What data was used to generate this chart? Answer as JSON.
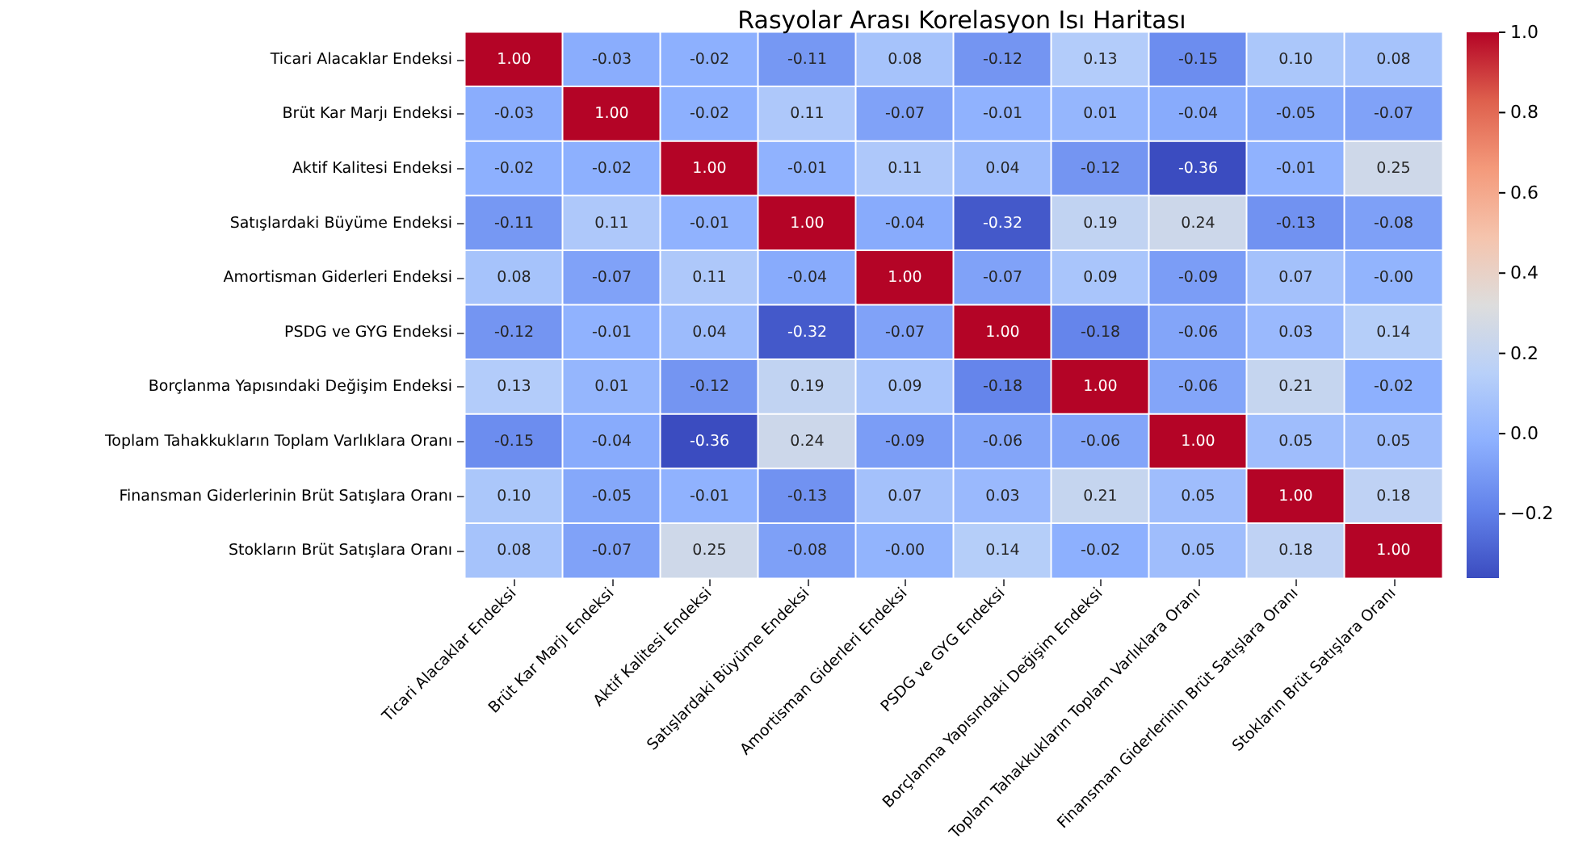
{
  "chart_data": {
    "type": "heatmap",
    "title": "Rasyolar Arası Korelasyon Isı Haritası",
    "categories": [
      "Ticari Alacaklar Endeksi",
      "Brüt Kar Marjı Endeksi",
      "Aktif Kalitesi Endeksi",
      "Satışlardaki Büyüme Endeksi",
      "Amortisman Giderleri Endeksi",
      "PSDG ve GYG Endeksi",
      "Borçlanma Yapısındaki Değişim Endeksi",
      "Toplam Tahakkukların Toplam Varlıklara Oranı",
      "Finansman Giderlerinin Brüt Satışlara Oranı",
      "Stokların Brüt Satışlara Oranı"
    ],
    "y_categories": [
      "Ticari Alacaklar Endeksi",
      "Brüt Kar Marjı Endeksi",
      "Aktif Kalitesi Endeksi",
      "Satışlardaki Büyüme Endeksi",
      "Amortisman Giderleri Endeksi",
      "PSDG ve GYG Endeksi",
      "Borçlanma Yapısındaki Değişim Endeksi",
      "Toplam Tahakkukların Toplam Varlıklara Oranı",
      "Finansman Giderlerinin Brüt Satışlara Oranı",
      "Stokların Brüt Satışlara Oranı"
    ],
    "cells": [
      [
        1.0,
        -0.03,
        -0.02,
        -0.11,
        0.08,
        -0.12,
        0.13,
        -0.15,
        0.1,
        0.08
      ],
      [
        -0.03,
        1.0,
        -0.02,
        0.11,
        -0.07,
        -0.01,
        0.01,
        -0.04,
        -0.05,
        -0.07
      ],
      [
        -0.02,
        -0.02,
        1.0,
        -0.01,
        0.11,
        0.04,
        -0.12,
        -0.36,
        -0.01,
        0.25
      ],
      [
        -0.11,
        0.11,
        -0.01,
        1.0,
        -0.04,
        -0.32,
        0.19,
        0.24,
        -0.13,
        -0.08
      ],
      [
        0.08,
        -0.07,
        0.11,
        -0.04,
        1.0,
        -0.07,
        0.09,
        -0.09,
        0.07,
        0.0
      ],
      [
        -0.12,
        -0.01,
        0.04,
        -0.32,
        -0.07,
        1.0,
        -0.18,
        -0.06,
        0.03,
        0.14
      ],
      [
        0.13,
        0.01,
        -0.12,
        0.19,
        0.09,
        -0.18,
        1.0,
        -0.06,
        0.21,
        -0.02
      ],
      [
        -0.15,
        -0.04,
        -0.36,
        0.24,
        -0.09,
        -0.06,
        -0.06,
        1.0,
        0.05,
        0.05
      ],
      [
        0.1,
        -0.05,
        -0.01,
        -0.13,
        0.07,
        0.03,
        0.21,
        0.05,
        1.0,
        0.18
      ],
      [
        0.08,
        -0.07,
        0.25,
        -0.08,
        0.0,
        0.14,
        -0.02,
        0.05,
        0.18,
        1.0
      ]
    ],
    "cell_labels": [
      [
        "1.00",
        "-0.03",
        "-0.02",
        "-0.11",
        "0.08",
        "-0.12",
        "0.13",
        "-0.15",
        "0.10",
        "0.08"
      ],
      [
        "-0.03",
        "1.00",
        "-0.02",
        "0.11",
        "-0.07",
        "-0.01",
        "0.01",
        "-0.04",
        "-0.05",
        "-0.07"
      ],
      [
        "-0.02",
        "-0.02",
        "1.00",
        "-0.01",
        "0.11",
        "0.04",
        "-0.12",
        "-0.36",
        "-0.01",
        "0.25"
      ],
      [
        "-0.11",
        "0.11",
        "-0.01",
        "1.00",
        "-0.04",
        "-0.32",
        "0.19",
        "0.24",
        "-0.13",
        "-0.08"
      ],
      [
        "0.08",
        "-0.07",
        "0.11",
        "-0.04",
        "1.00",
        "-0.07",
        "0.09",
        "-0.09",
        "0.07",
        "-0.00"
      ],
      [
        "-0.12",
        "-0.01",
        "0.04",
        "-0.32",
        "-0.07",
        "1.00",
        "-0.18",
        "-0.06",
        "0.03",
        "0.14"
      ],
      [
        "0.13",
        "0.01",
        "-0.12",
        "0.19",
        "0.09",
        "-0.18",
        "1.00",
        "-0.06",
        "0.21",
        "-0.02"
      ],
      [
        "-0.15",
        "-0.04",
        "-0.36",
        "0.24",
        "-0.09",
        "-0.06",
        "-0.06",
        "1.00",
        "0.05",
        "0.05"
      ],
      [
        "0.10",
        "-0.05",
        "-0.01",
        "-0.13",
        "0.07",
        "0.03",
        "0.21",
        "0.05",
        "1.00",
        "0.18"
      ],
      [
        "0.08",
        "-0.07",
        "0.25",
        "-0.08",
        "-0.00",
        "0.14",
        "-0.02",
        "0.05",
        "0.18",
        "1.00"
      ]
    ],
    "clim": [
      -0.36,
      1.0
    ],
    "cticks": [
      {
        "value": -0.2,
        "label": "−0.2"
      },
      {
        "value": 0,
        "label": "0.0"
      },
      {
        "value": 0.2,
        "label": "0.2"
      },
      {
        "value": 0.4,
        "label": "0.4"
      },
      {
        "value": 0.6,
        "label": "0.6"
      },
      {
        "value": 0.8,
        "label": "0.8"
      },
      {
        "value": 1.0,
        "label": "1.0"
      }
    ]
  }
}
